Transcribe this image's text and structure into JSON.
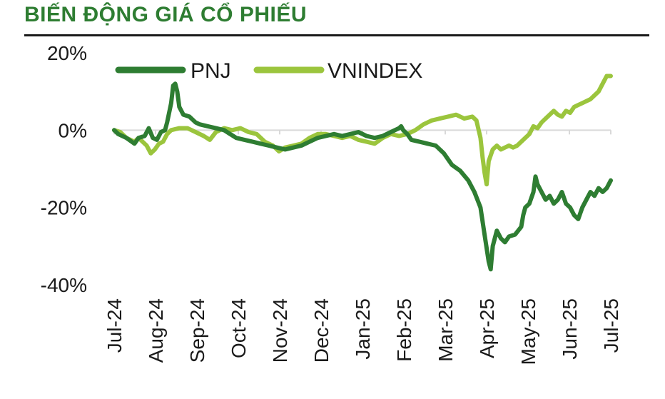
{
  "header": {
    "title": "BIẾN ĐỘNG GIÁ CỔ PHIẾU"
  },
  "colors": {
    "pnj": "#2e7d32",
    "vnindex": "#9bc53d",
    "grid": "#d9d9d9"
  },
  "chart_data": {
    "type": "line",
    "title": "BIẾN ĐỘNG GIÁ CỔ PHIẾU",
    "xlabel": "",
    "ylabel": "",
    "ylim": [
      -40,
      20
    ],
    "yticks": [
      20,
      0,
      -20,
      -40
    ],
    "ytick_labels": [
      "20%",
      "0%",
      "-20%",
      "-40%"
    ],
    "x_tick_labels": [
      "Jul-24",
      "Aug-24",
      "Sep-24",
      "Oct-24",
      "Nov-24",
      "Dec-24",
      "Jan-25",
      "Feb-25",
      "Mar-25",
      "Apr-25",
      "May-25",
      "Jun-25",
      "Jul-25"
    ],
    "x_range_months": [
      0,
      12.2
    ],
    "grid": false,
    "legend_position": "top-left",
    "series": [
      {
        "name": "PNJ",
        "color": "#2e7d32",
        "points": [
          [
            0,
            0
          ],
          [
            0.1,
            -1
          ],
          [
            0.3,
            -2
          ],
          [
            0.5,
            -3.5
          ],
          [
            0.6,
            -2
          ],
          [
            0.75,
            -1.5
          ],
          [
            0.85,
            0.5
          ],
          [
            0.95,
            -2
          ],
          [
            1.05,
            -2.5
          ],
          [
            1.15,
            -0.5
          ],
          [
            1.25,
            0
          ],
          [
            1.3,
            2
          ],
          [
            1.4,
            7
          ],
          [
            1.45,
            11.5
          ],
          [
            1.5,
            12
          ],
          [
            1.55,
            10
          ],
          [
            1.6,
            6
          ],
          [
            1.7,
            4
          ],
          [
            1.85,
            3.5
          ],
          [
            2.0,
            2
          ],
          [
            2.1,
            1.5
          ],
          [
            2.3,
            1
          ],
          [
            2.5,
            0.5
          ],
          [
            2.7,
            0
          ],
          [
            2.85,
            -1
          ],
          [
            3.0,
            -2
          ],
          [
            3.2,
            -2.5
          ],
          [
            3.4,
            -3
          ],
          [
            3.6,
            -3.5
          ],
          [
            3.8,
            -4
          ],
          [
            4.0,
            -4.5
          ],
          [
            4.2,
            -5
          ],
          [
            4.4,
            -4.5
          ],
          [
            4.6,
            -4
          ],
          [
            4.8,
            -3
          ],
          [
            5.0,
            -2
          ],
          [
            5.2,
            -1.5
          ],
          [
            5.4,
            -1
          ],
          [
            5.6,
            -1.5
          ],
          [
            5.8,
            -1
          ],
          [
            6.0,
            -0.5
          ],
          [
            6.2,
            -1.5
          ],
          [
            6.4,
            -2
          ],
          [
            6.6,
            -1.5
          ],
          [
            6.8,
            -0.5
          ],
          [
            7.0,
            0.5
          ],
          [
            7.05,
            1
          ],
          [
            7.1,
            0
          ],
          [
            7.2,
            -1
          ],
          [
            7.3,
            -2.5
          ],
          [
            7.5,
            -3
          ],
          [
            7.7,
            -3.5
          ],
          [
            7.9,
            -4
          ],
          [
            8.1,
            -6
          ],
          [
            8.3,
            -9
          ],
          [
            8.5,
            -10.5
          ],
          [
            8.7,
            -13
          ],
          [
            8.85,
            -16
          ],
          [
            9.0,
            -20
          ],
          [
            9.1,
            -27
          ],
          [
            9.2,
            -34
          ],
          [
            9.25,
            -36
          ],
          [
            9.3,
            -30
          ],
          [
            9.4,
            -26
          ],
          [
            9.5,
            -28
          ],
          [
            9.6,
            -29
          ],
          [
            9.7,
            -27.5
          ],
          [
            9.85,
            -27
          ],
          [
            10.0,
            -25
          ],
          [
            10.05,
            -22
          ],
          [
            10.1,
            -20
          ],
          [
            10.2,
            -19
          ],
          [
            10.3,
            -16
          ],
          [
            10.35,
            -12
          ],
          [
            10.4,
            -14
          ],
          [
            10.5,
            -16
          ],
          [
            10.6,
            -18
          ],
          [
            10.7,
            -17
          ],
          [
            10.8,
            -19
          ],
          [
            10.9,
            -18
          ],
          [
            11.0,
            -16
          ],
          [
            11.1,
            -19
          ],
          [
            11.2,
            -20
          ],
          [
            11.3,
            -22
          ],
          [
            11.4,
            -23
          ],
          [
            11.5,
            -20
          ],
          [
            11.6,
            -18
          ],
          [
            11.7,
            -16
          ],
          [
            11.8,
            -17
          ],
          [
            11.9,
            -15
          ],
          [
            12.0,
            -16
          ],
          [
            12.1,
            -15
          ],
          [
            12.2,
            -13
          ]
        ]
      },
      {
        "name": "VNINDEX",
        "color": "#9bc53d",
        "points": [
          [
            0,
            0
          ],
          [
            0.15,
            -0.5
          ],
          [
            0.3,
            -2
          ],
          [
            0.5,
            -3
          ],
          [
            0.6,
            -2
          ],
          [
            0.8,
            -4
          ],
          [
            0.9,
            -6
          ],
          [
            1.0,
            -5
          ],
          [
            1.1,
            -3.5
          ],
          [
            1.2,
            -3
          ],
          [
            1.3,
            -1
          ],
          [
            1.4,
            0
          ],
          [
            1.6,
            0.5
          ],
          [
            1.8,
            0.5
          ],
          [
            2.0,
            -0.5
          ],
          [
            2.2,
            -1.5
          ],
          [
            2.35,
            -2.5
          ],
          [
            2.5,
            -0.5
          ],
          [
            2.7,
            0.5
          ],
          [
            2.9,
            0
          ],
          [
            3.1,
            0.5
          ],
          [
            3.3,
            -0.5
          ],
          [
            3.5,
            -1
          ],
          [
            3.7,
            -3
          ],
          [
            3.9,
            -4
          ],
          [
            4.05,
            -5.5
          ],
          [
            4.2,
            -4.5
          ],
          [
            4.4,
            -4
          ],
          [
            4.6,
            -3.5
          ],
          [
            4.8,
            -2
          ],
          [
            5.0,
            -1
          ],
          [
            5.2,
            -1
          ],
          [
            5.4,
            -1.5
          ],
          [
            5.6,
            -2
          ],
          [
            5.8,
            -1.5
          ],
          [
            6.0,
            -2.5
          ],
          [
            6.2,
            -3
          ],
          [
            6.4,
            -3.5
          ],
          [
            6.6,
            -2
          ],
          [
            6.8,
            -1
          ],
          [
            7.0,
            -1.5
          ],
          [
            7.2,
            -1
          ],
          [
            7.4,
            0
          ],
          [
            7.6,
            1.5
          ],
          [
            7.8,
            2.5
          ],
          [
            8.0,
            3
          ],
          [
            8.2,
            3.5
          ],
          [
            8.4,
            4
          ],
          [
            8.6,
            3
          ],
          [
            8.8,
            3.5
          ],
          [
            8.9,
            2.5
          ],
          [
            9.0,
            -2
          ],
          [
            9.05,
            -7
          ],
          [
            9.1,
            -11
          ],
          [
            9.15,
            -14
          ],
          [
            9.2,
            -8
          ],
          [
            9.3,
            -5
          ],
          [
            9.4,
            -4
          ],
          [
            9.5,
            -5
          ],
          [
            9.6,
            -4.5
          ],
          [
            9.7,
            -4
          ],
          [
            9.8,
            -4.5
          ],
          [
            9.9,
            -4
          ],
          [
            10.0,
            -3
          ],
          [
            10.1,
            -2
          ],
          [
            10.2,
            -1
          ],
          [
            10.3,
            1
          ],
          [
            10.4,
            0.5
          ],
          [
            10.5,
            2
          ],
          [
            10.6,
            3
          ],
          [
            10.7,
            4
          ],
          [
            10.8,
            5
          ],
          [
            10.9,
            4
          ],
          [
            11.0,
            3.5
          ],
          [
            11.1,
            5
          ],
          [
            11.2,
            4.5
          ],
          [
            11.3,
            6
          ],
          [
            11.4,
            6.5
          ],
          [
            11.5,
            7
          ],
          [
            11.6,
            7.5
          ],
          [
            11.7,
            8
          ],
          [
            11.8,
            9
          ],
          [
            11.9,
            10
          ],
          [
            12.0,
            12
          ],
          [
            12.1,
            14
          ],
          [
            12.2,
            14
          ]
        ]
      }
    ]
  }
}
